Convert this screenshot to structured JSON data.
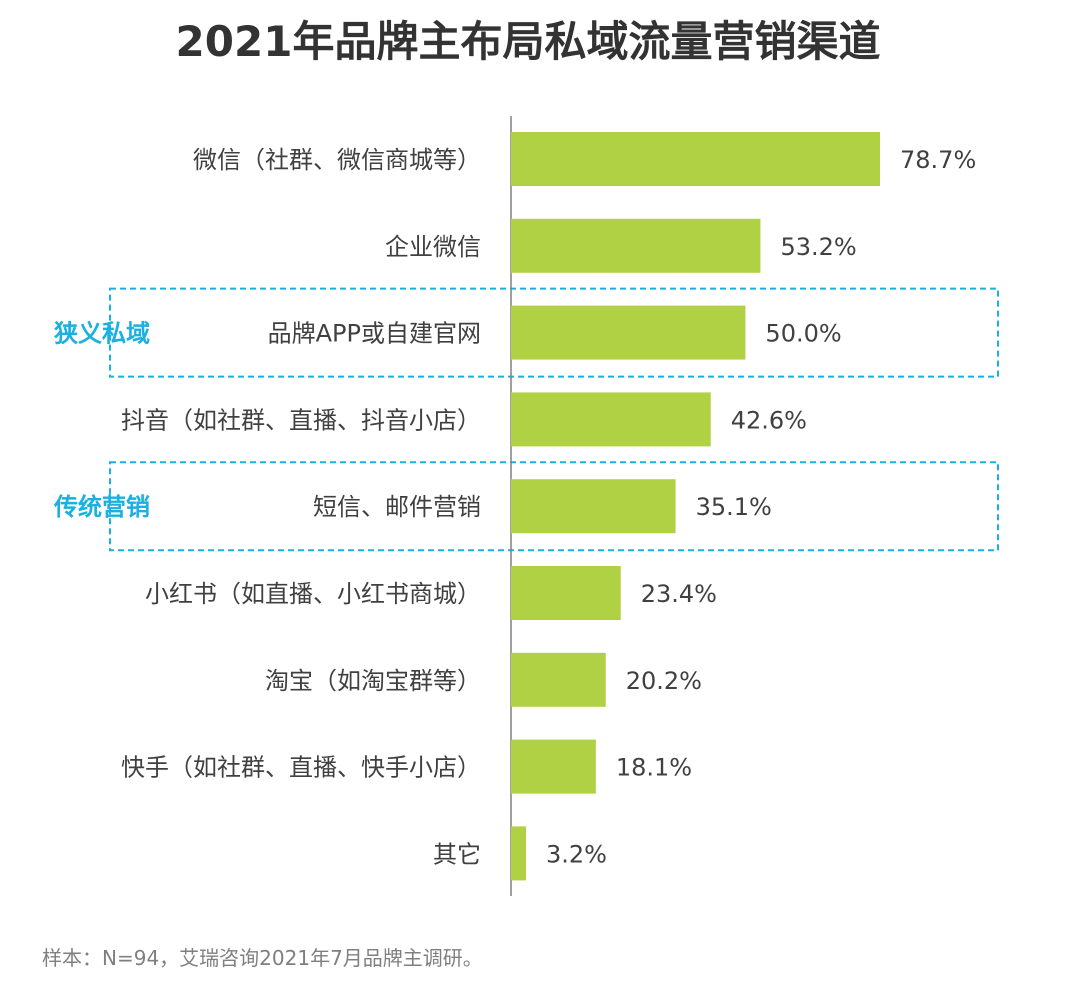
{
  "title": "2021年品牌主布局私域流量营销渠道",
  "footer": "样本：N=94，艾瑞咨询2021年7月品牌主调研。",
  "colors": {
    "bar": "#b1d144",
    "highlight": "#1ab0e0",
    "text": "#404040",
    "axis": "#808080"
  },
  "chart_data": {
    "type": "bar",
    "orientation": "horizontal",
    "categories": [
      "微信（社群、微信商城等）",
      "企业微信",
      "品牌APP或自建官网",
      "抖音（如社群、直播、抖音小店）",
      "短信、邮件营销",
      "小红书（如直播、小红书商城）",
      "淘宝（如淘宝群等）",
      "快手（如社群、直播、快手小店）",
      "其它"
    ],
    "values": [
      78.7,
      53.2,
      50.0,
      42.6,
      35.1,
      23.4,
      20.2,
      18.1,
      3.2
    ],
    "value_labels": [
      "78.7%",
      "53.2%",
      "50.0%",
      "42.6%",
      "35.1%",
      "23.4%",
      "20.2%",
      "18.1%",
      "3.2%"
    ],
    "xlim": [
      0,
      100
    ],
    "grid": false,
    "annotations": [
      {
        "label": "狭义私域",
        "category_index": 2
      },
      {
        "label": "传统营销",
        "category_index": 4
      }
    ]
  }
}
